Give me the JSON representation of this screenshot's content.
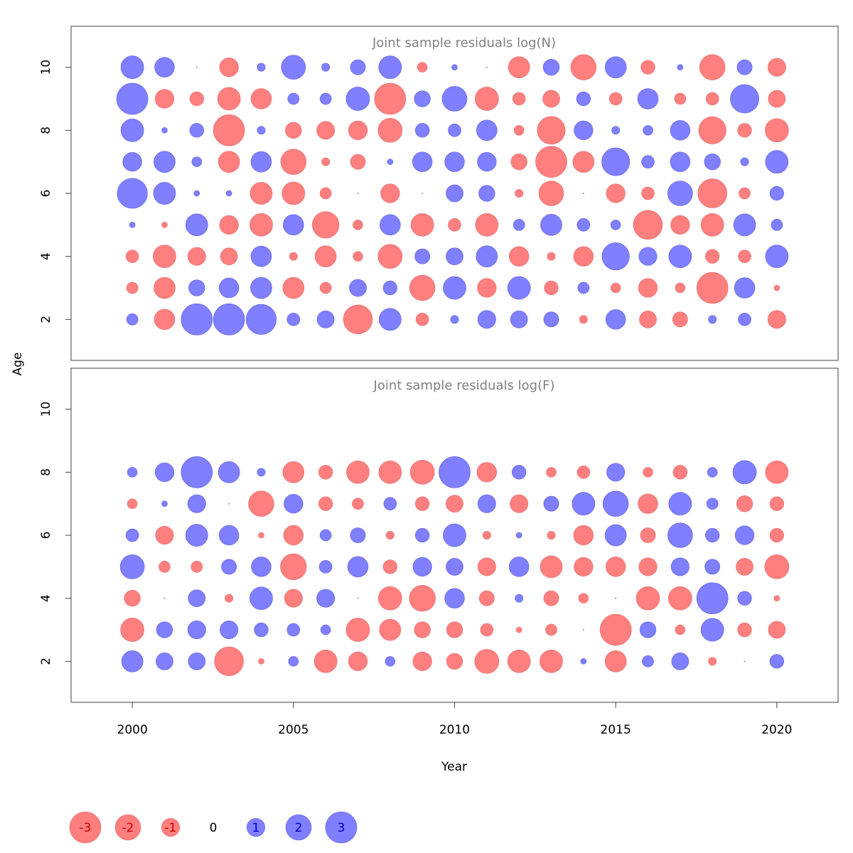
{
  "chart_data": {
    "type": "bubble",
    "xlabel": "Year",
    "ylabel": "Age",
    "x_ticks": [
      2000,
      2005,
      2010,
      2015,
      2020
    ],
    "y_ticks": [
      2,
      4,
      6,
      8,
      10
    ],
    "xlim": [
      1998.1,
      2021.9
    ],
    "ylim": [
      0.7,
      11.3
    ],
    "years": [
      2000,
      2001,
      2002,
      2003,
      2004,
      2005,
      2006,
      2007,
      2008,
      2009,
      2010,
      2011,
      2012,
      2013,
      2014,
      2015,
      2016,
      2017,
      2018,
      2019,
      2020
    ],
    "colors": {
      "negative": "#ff7f7f",
      "positive": "#7f7fff",
      "negative_stroke": "#e07070",
      "positive_stroke": "#6060dd"
    },
    "panels": [
      {
        "title": "Joint sample residuals log(N)",
        "ages": [
          2,
          3,
          4,
          5,
          6,
          7,
          8,
          9,
          10
        ],
        "residuals": {
          "2": [
            0.4,
            -1.3,
            3.0,
            3.0,
            2.8,
            0.5,
            0.9,
            -2.6,
            1.5,
            -0.5,
            0.2,
            1.0,
            0.9,
            0.7,
            -0.2,
            1.2,
            -0.9,
            -0.7,
            0.2,
            0.5,
            -1.0
          ],
          "3": [
            -0.4,
            -1.4,
            0.8,
            1.2,
            1.4,
            -1.4,
            -0.4,
            0.9,
            0.6,
            -2.0,
            1.6,
            -1.1,
            1.6,
            -0.6,
            0.4,
            -0.3,
            -1.1,
            -0.3,
            -3.0,
            1.3,
            -0.1
          ],
          "4": [
            -0.5,
            -1.6,
            -1.0,
            -0.9,
            1.3,
            -0.2,
            -1.4,
            -0.3,
            -1.8,
            0.7,
            0.9,
            1.4,
            -1.2,
            -0.2,
            -1.2,
            2.3,
            1.0,
            1.6,
            -0.6,
            -0.5,
            1.6
          ],
          "5": [
            0.1,
            -0.1,
            1.5,
            -1.1,
            -1.6,
            1.3,
            -2.2,
            -0.3,
            1.3,
            -1.6,
            -0.5,
            -1.6,
            0.4,
            1.4,
            0.5,
            0.3,
            -2.6,
            -1.1,
            -1.6,
            1.5,
            0.4
          ],
          "6": [
            2.8,
            1.5,
            0.1,
            0.1,
            -1.5,
            -1.6,
            -0.4,
            0.0,
            -1.1,
            0.0,
            0.9,
            0.8,
            -0.2,
            -1.9,
            0.0,
            -1.1,
            -0.5,
            1.9,
            -2.6,
            -0.4,
            0.6
          ],
          "7": [
            1.1,
            1.4,
            0.3,
            -1.4,
            1.3,
            -2.0,
            -0.2,
            -0.7,
            0.1,
            1.2,
            1.2,
            1.1,
            -0.8,
            -3.0,
            -1.4,
            2.4,
            0.5,
            1.2,
            0.8,
            0.2,
            1.6
          ],
          "8": [
            1.6,
            0.1,
            0.6,
            -3.0,
            0.2,
            -0.8,
            -1.0,
            -1.1,
            -1.8,
            0.6,
            0.5,
            1.3,
            -0.3,
            -2.4,
            1.1,
            0.2,
            0.3,
            1.2,
            -2.3,
            -0.6,
            -1.7
          ],
          "9": [
            3.0,
            -1.1,
            -0.6,
            -1.6,
            -1.3,
            0.4,
            0.4,
            1.7,
            -3.0,
            0.8,
            1.9,
            -1.7,
            -0.5,
            -0.9,
            0.6,
            -0.5,
            1.3,
            -0.4,
            -0.5,
            2.5,
            -0.9
          ],
          "10": [
            1.6,
            1.2,
            0.0,
            -1.1,
            0.2,
            1.8,
            0.2,
            0.7,
            1.6,
            -0.3,
            0.1,
            0.0,
            -1.4,
            0.8,
            -2.0,
            1.4,
            -0.6,
            0.1,
            -2.0,
            0.7,
            -1.0
          ]
        }
      },
      {
        "title": "Joint sample residuals log(F)",
        "ages": [
          2,
          3,
          4,
          5,
          6,
          7,
          8
        ],
        "residuals": {
          "2": [
            1.4,
            0.9,
            0.9,
            -2.6,
            -0.1,
            0.3,
            -1.6,
            -1.1,
            0.3,
            -1.1,
            -0.8,
            -1.8,
            -1.6,
            -1.6,
            0.1,
            -1.4,
            0.4,
            0.9,
            -0.2,
            0.0,
            0.6
          ],
          "3": [
            -1.7,
            0.8,
            1.0,
            1.0,
            0.6,
            0.5,
            0.3,
            -1.7,
            -1.4,
            -0.8,
            -0.8,
            -0.5,
            -0.1,
            -0.4,
            0.0,
            -3.0,
            0.8,
            -0.3,
            1.6,
            -0.6,
            -0.9
          ],
          "4": [
            -0.8,
            0.0,
            0.9,
            -0.2,
            1.6,
            -1.0,
            1.0,
            0.0,
            -1.7,
            -2.1,
            1.2,
            -0.7,
            0.2,
            -0.7,
            -0.3,
            0.0,
            -1.7,
            -1.7,
            3.0,
            0.6,
            -0.1
          ],
          "5": [
            1.8,
            -0.4,
            -0.4,
            0.7,
            1.2,
            -2.1,
            0.5,
            1.3,
            -0.6,
            1.1,
            0.9,
            -1.0,
            1.2,
            -1.5,
            -1.1,
            -1.2,
            -1.0,
            1.0,
            0.7,
            -0.9,
            -1.8
          ],
          "6": [
            0.5,
            -1.0,
            1.5,
            1.2,
            -0.1,
            -1.2,
            0.4,
            0.7,
            -0.2,
            0.6,
            1.6,
            -0.2,
            0.1,
            -0.2,
            -1.2,
            1.4,
            -0.7,
            1.9,
            0.6,
            1.1,
            -0.6
          ],
          "7": [
            -0.3,
            0.1,
            1.0,
            0.0,
            -2.0,
            1.1,
            -0.6,
            -0.4,
            0.5,
            -0.6,
            -0.9,
            1.0,
            -1.0,
            0.7,
            1.6,
            2.0,
            -1.2,
            1.6,
            0.4,
            -0.8,
            -0.6
          ],
          "8": [
            0.3,
            1.1,
            3.0,
            1.4,
            0.2,
            -1.4,
            -0.6,
            -1.6,
            -1.6,
            -1.8,
            3.0,
            -1.2,
            0.6,
            -0.3,
            -0.5,
            1.0,
            -0.3,
            -0.6,
            0.3,
            1.7,
            -1.6
          ]
        }
      }
    ],
    "legend": [
      {
        "label": "-3",
        "value": -3
      },
      {
        "label": "-2",
        "value": -2
      },
      {
        "label": "-1",
        "value": -1
      },
      {
        "label": "0",
        "value": 0
      },
      {
        "label": "1",
        "value": 1
      },
      {
        "label": "2",
        "value": 2
      },
      {
        "label": "3",
        "value": 3
      }
    ]
  }
}
